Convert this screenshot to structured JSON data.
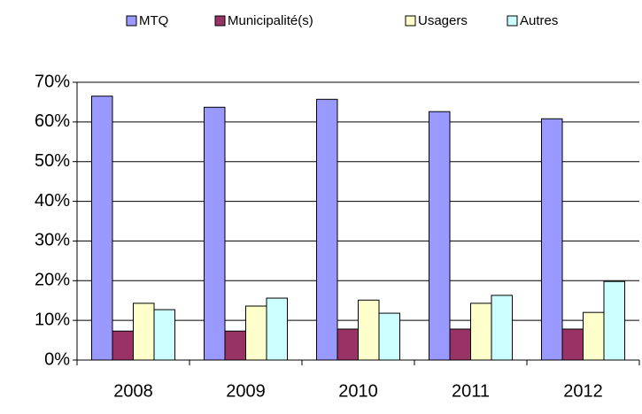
{
  "chart_data": {
    "type": "bar",
    "categories": [
      "2008",
      "2009",
      "2010",
      "2011",
      "2012"
    ],
    "series": [
      {
        "name": "MTQ",
        "color": "#9999ff",
        "values": [
          66.5,
          63.7,
          65.7,
          62.6,
          60.8
        ]
      },
      {
        "name": "Municipalité(s)",
        "color": "#993366",
        "values": [
          7.3,
          7.3,
          7.8,
          7.8,
          7.8
        ]
      },
      {
        "name": "Usagers",
        "color": "#ffffcc",
        "values": [
          14.3,
          13.6,
          15.1,
          14.3,
          12
        ]
      },
      {
        "name": "Autres",
        "color": "#ccffff",
        "values": [
          12.7,
          15.6,
          11.8,
          16.3,
          19.8
        ]
      }
    ],
    "ylim": [
      0,
      70
    ],
    "yticks": [
      {
        "value": 0,
        "label": "0%"
      },
      {
        "value": 10,
        "label": "10%"
      },
      {
        "value": 20,
        "label": "20%"
      },
      {
        "value": 30,
        "label": "30%"
      },
      {
        "value": 40,
        "label": "40%"
      },
      {
        "value": 50,
        "label": "50%"
      },
      {
        "value": 60,
        "label": "60%"
      },
      {
        "value": 70,
        "label": "70%"
      }
    ],
    "grid": true,
    "legend": "top"
  }
}
